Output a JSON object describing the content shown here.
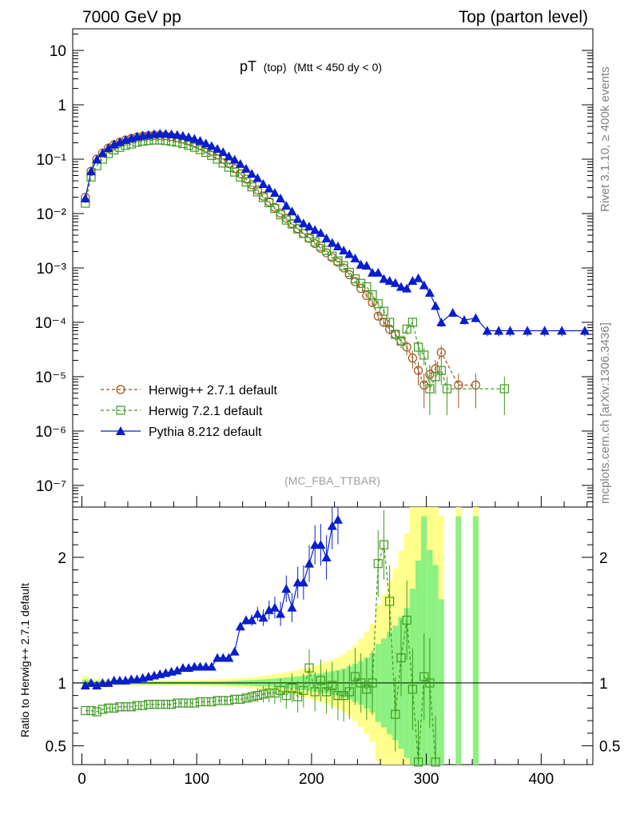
{
  "header": {
    "left": "7000 GeV pp",
    "right": "Top (parton level)"
  },
  "side": {
    "rivet": "Rivet 3.1.10, ≥ 400k events",
    "mcplots": "mcplots.cern.ch [arXiv:1306.3436]"
  },
  "chart_data": {
    "type": "line",
    "title_main": "pT",
    "title_sub": "(top)",
    "title_cond": "(Mtt < 450 dy < 0)",
    "watermark": "(MC_FBA_TTBAR)",
    "xlim": [
      -8,
      445
    ],
    "ylim_log": [
      4e-08,
      25
    ],
    "ratio_ylim": [
      0.35,
      2.4
    ],
    "ratio_ylabel": "Ratio to Herwig++ 2.7.1 default",
    "x_ticks": [
      0,
      100,
      200,
      300,
      400
    ],
    "y_tick_labels": [
      "10",
      "1",
      "10⁻¹",
      "10⁻²",
      "10⁻³",
      "10⁻⁴",
      "10⁻⁵",
      "10⁻⁶",
      "10⁻⁷"
    ],
    "ratio_ticks": [
      "0.5",
      "1",
      "2"
    ],
    "legend": [
      {
        "label": "Herwig++ 2.7.1 default",
        "color": "#a0521a",
        "marker": "circle"
      },
      {
        "label": "Herwig 7.2.1 default",
        "color": "#3f9a1f",
        "marker": "square"
      },
      {
        "label": "Pythia 8.212 default",
        "color": "#0a1ecc",
        "marker": "triangle"
      }
    ],
    "series": [
      {
        "name": "Herwig++ 2.7.1 default",
        "x": [
          3,
          8,
          13,
          18,
          23,
          28,
          33,
          38,
          43,
          48,
          53,
          58,
          63,
          68,
          73,
          78,
          83,
          88,
          93,
          98,
          103,
          108,
          113,
          118,
          123,
          128,
          133,
          138,
          143,
          148,
          153,
          158,
          163,
          168,
          173,
          178,
          183,
          188,
          193,
          198,
          203,
          208,
          213,
          218,
          223,
          228,
          233,
          238,
          243,
          248,
          253,
          258,
          263,
          268,
          273,
          278,
          283,
          288,
          293,
          298,
          303,
          308,
          313,
          328,
          343
        ],
        "y": [
          0.02,
          0.06,
          0.1,
          0.13,
          0.16,
          0.185,
          0.205,
          0.225,
          0.24,
          0.255,
          0.265,
          0.27,
          0.275,
          0.275,
          0.27,
          0.26,
          0.25,
          0.235,
          0.22,
          0.2,
          0.18,
          0.16,
          0.14,
          0.12,
          0.1,
          0.083,
          0.067,
          0.054,
          0.043,
          0.034,
          0.027,
          0.021,
          0.0165,
          0.013,
          0.0102,
          0.0082,
          0.0066,
          0.0053,
          0.0043,
          0.0035,
          0.0028,
          0.0023,
          0.0019,
          0.00155,
          0.00127,
          0.001,
          0.00075,
          0.00056,
          0.00042,
          0.00031,
          0.00023,
          0.00013,
          0.0001,
          7.5e-05,
          6e-05,
          4.5e-05,
          3.5e-05,
          2.2e-05,
          1.3e-05,
          7e-06,
          1.1e-05,
          1.4e-05,
          2.8e-05,
          7e-06,
          7e-06
        ]
      },
      {
        "name": "Herwig 7.2.1 default",
        "x": [
          3,
          8,
          13,
          18,
          23,
          28,
          33,
          38,
          43,
          48,
          53,
          58,
          63,
          68,
          73,
          78,
          83,
          88,
          93,
          98,
          103,
          108,
          113,
          118,
          123,
          128,
          133,
          138,
          143,
          148,
          153,
          158,
          163,
          168,
          173,
          178,
          183,
          188,
          193,
          198,
          203,
          208,
          213,
          218,
          223,
          228,
          233,
          238,
          243,
          248,
          253,
          258,
          263,
          268,
          273,
          278,
          283,
          288,
          293,
          298,
          303,
          308,
          313,
          318,
          368
        ],
        "y": [
          0.0155,
          0.047,
          0.076,
          0.1,
          0.127,
          0.148,
          0.165,
          0.18,
          0.19,
          0.205,
          0.215,
          0.22,
          0.225,
          0.225,
          0.22,
          0.213,
          0.205,
          0.193,
          0.18,
          0.166,
          0.15,
          0.133,
          0.117,
          0.1,
          0.085,
          0.071,
          0.058,
          0.047,
          0.038,
          0.031,
          0.025,
          0.0197,
          0.0158,
          0.0124,
          0.0095,
          0.0076,
          0.0064,
          0.0052,
          0.0043,
          0.0036,
          0.003,
          0.0025,
          0.0021,
          0.00165,
          0.00135,
          0.0011,
          0.00083,
          0.00063,
          0.00052,
          0.00045,
          0.00032,
          0.00022,
          0.00016,
          0.0001,
          6e-05,
          4.5e-05,
          7.5e-05,
          0.0001,
          3.5e-05,
          2.5e-05,
          6e-06,
          1e-05,
          1.3e-05,
          6e-06,
          6e-06
        ]
      },
      {
        "name": "Pythia 8.212 default",
        "x": [
          3,
          8,
          13,
          18,
          23,
          28,
          33,
          38,
          43,
          48,
          53,
          58,
          63,
          68,
          73,
          78,
          83,
          88,
          93,
          98,
          103,
          108,
          113,
          118,
          123,
          128,
          133,
          138,
          143,
          148,
          153,
          158,
          163,
          168,
          173,
          178,
          183,
          188,
          193,
          198,
          203,
          208,
          213,
          218,
          223,
          228,
          233,
          238,
          243,
          248,
          253,
          258,
          263,
          268,
          273,
          278,
          283,
          288,
          293,
          298,
          303,
          308,
          313,
          323,
          333,
          343,
          353,
          363,
          373,
          388,
          403,
          418,
          438
        ],
        "y": [
          0.019,
          0.06,
          0.099,
          0.13,
          0.16,
          0.188,
          0.207,
          0.227,
          0.245,
          0.262,
          0.272,
          0.28,
          0.29,
          0.295,
          0.293,
          0.287,
          0.28,
          0.27,
          0.255,
          0.237,
          0.218,
          0.195,
          0.175,
          0.155,
          0.135,
          0.113,
          0.098,
          0.082,
          0.067,
          0.054,
          0.045,
          0.035,
          0.029,
          0.024,
          0.019,
          0.014,
          0.011,
          0.008,
          0.0066,
          0.0058,
          0.005,
          0.0044,
          0.0035,
          0.0029,
          0.0025,
          0.0021,
          0.0018,
          0.0015,
          0.00115,
          0.0011,
          0.00082,
          0.00082,
          0.00063,
          0.00058,
          0.00053,
          0.00045,
          0.00042,
          0.00058,
          0.00065,
          0.00048,
          0.00035,
          0.0002,
          0.0001,
          0.00015,
          0.00011,
          0.00012,
          7e-05,
          7e-05,
          7e-05,
          7e-05,
          7e-05,
          7e-05,
          7e-05
        ]
      }
    ],
    "ratio_series": [
      {
        "name": "Herwig 7.2.1 default",
        "x": [
          3,
          8,
          13,
          18,
          23,
          28,
          33,
          38,
          43,
          48,
          53,
          58,
          63,
          68,
          73,
          78,
          83,
          88,
          93,
          98,
          103,
          108,
          113,
          118,
          123,
          128,
          133,
          138,
          143,
          148,
          153,
          158,
          163,
          168,
          173,
          178,
          183,
          188,
          193,
          198,
          203,
          208,
          213,
          218,
          223,
          228,
          233,
          238,
          243,
          248,
          253,
          258,
          263,
          268,
          273,
          278,
          283,
          288,
          293,
          298,
          303,
          308
        ],
        "y": [
          0.78,
          0.78,
          0.77,
          0.79,
          0.8,
          0.8,
          0.81,
          0.81,
          0.81,
          0.82,
          0.82,
          0.83,
          0.83,
          0.83,
          0.83,
          0.83,
          0.84,
          0.84,
          0.84,
          0.84,
          0.85,
          0.85,
          0.85,
          0.86,
          0.86,
          0.86,
          0.87,
          0.87,
          0.88,
          0.89,
          0.9,
          0.91,
          0.92,
          0.92,
          0.94,
          0.9,
          0.96,
          0.89,
          0.94,
          1.12,
          0.93,
          1.02,
          0.93,
          0.98,
          0.9,
          0.9,
          0.93,
          1.05,
          1.0,
          0.95,
          1.0,
          1.95,
          2.1,
          1.65,
          0.75,
          1.2,
          1.5,
          0.95,
          0.37,
          1.05,
          1.0,
          0.37
        ]
      },
      {
        "name": "Pythia 8.212 default",
        "x": [
          3,
          8,
          13,
          18,
          23,
          28,
          33,
          38,
          43,
          48,
          53,
          58,
          63,
          68,
          73,
          78,
          83,
          88,
          93,
          98,
          103,
          108,
          113,
          118,
          123,
          128,
          133,
          138,
          143,
          148,
          153,
          158,
          163,
          168,
          173,
          178,
          183,
          188,
          193,
          198,
          203,
          208,
          213,
          218,
          223
        ],
        "y": [
          0.98,
          1.0,
          0.98,
          1.0,
          1.0,
          1.02,
          1.02,
          1.02,
          1.03,
          1.03,
          1.04,
          1.05,
          1.06,
          1.07,
          1.08,
          1.09,
          1.1,
          1.12,
          1.12,
          1.13,
          1.13,
          1.13,
          1.13,
          1.2,
          1.2,
          1.2,
          1.25,
          1.45,
          1.5,
          1.5,
          1.55,
          1.52,
          1.58,
          1.6,
          1.55,
          1.75,
          1.6,
          1.8,
          1.8,
          1.95,
          2.1,
          2.1,
          2.0,
          2.25,
          2.3
        ]
      }
    ]
  }
}
